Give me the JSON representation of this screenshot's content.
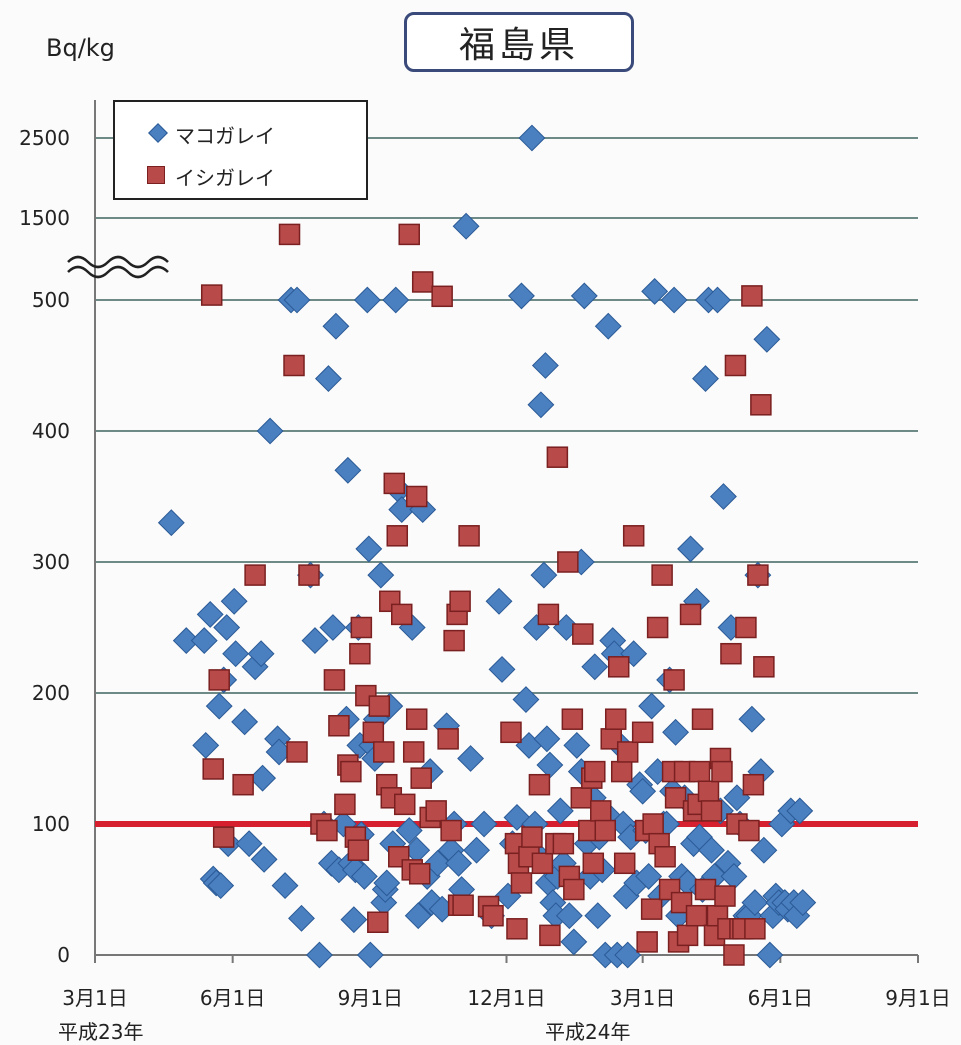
{
  "title": "福島県",
  "unit": "Bq/kg",
  "legend": {
    "series1": "マコガレイ",
    "series2": "イシガレイ"
  },
  "yticks": [
    "2500",
    "1500",
    "500",
    "400",
    "300",
    "200",
    "100",
    "0"
  ],
  "xticks": [
    "3月1日",
    "6月1日",
    "9月1日",
    "12月1日",
    "3月1日",
    "6月1日",
    "9月1日"
  ],
  "eras": [
    "平成23年",
    "平成24年"
  ],
  "chart_data": {
    "type": "scatter",
    "title": "福島県",
    "ylabel": "Bq/kg",
    "y_axis_break": "between 500 and 1500",
    "reference_line": 100,
    "x_unit": "days from 3月1日 平成23年",
    "xticks_days": [
      0,
      92,
      184,
      275,
      366,
      458,
      550
    ],
    "colors": {
      "マコガレイ": "#4a7fc0",
      "イシガレイ": "#b84a4a",
      "reference": "#d62030"
    },
    "series": [
      {
        "name": "マコガレイ",
        "points": [
          [
            51,
            330
          ],
          [
            61,
            240
          ],
          [
            73,
            240
          ],
          [
            74,
            160
          ],
          [
            77,
            260
          ],
          [
            79,
            58
          ],
          [
            81,
            55
          ],
          [
            83,
            190
          ],
          [
            84,
            53
          ],
          [
            86,
            210
          ],
          [
            88,
            250
          ],
          [
            89,
            85
          ],
          [
            93,
            270
          ],
          [
            94,
            230
          ],
          [
            100,
            178
          ],
          [
            103,
            85
          ],
          [
            107,
            220
          ],
          [
            111,
            230
          ],
          [
            112,
            135
          ],
          [
            113,
            73
          ],
          [
            117,
            400
          ],
          [
            122,
            165
          ],
          [
            123,
            155
          ],
          [
            127,
            53
          ],
          [
            131,
            500
          ],
          [
            135,
            500
          ],
          [
            138,
            28
          ],
          [
            144,
            290
          ],
          [
            147,
            240
          ],
          [
            150,
            0
          ],
          [
            153,
            100
          ],
          [
            156,
            440
          ],
          [
            158,
            70
          ],
          [
            159,
            250
          ],
          [
            161,
            480
          ],
          [
            163,
            65
          ],
          [
            166,
            100
          ],
          [
            168,
            180
          ],
          [
            169,
            370
          ],
          [
            171,
            70
          ],
          [
            173,
            27
          ],
          [
            174,
            65
          ],
          [
            176,
            250
          ],
          [
            177,
            160
          ],
          [
            178,
            92
          ],
          [
            180,
            60
          ],
          [
            182,
            500
          ],
          [
            183,
            310
          ],
          [
            184,
            0
          ],
          [
            185,
            160
          ],
          [
            187,
            150
          ],
          [
            188,
            180
          ],
          [
            191,
            290
          ],
          [
            193,
            40
          ],
          [
            194,
            50
          ],
          [
            195,
            55
          ],
          [
            197,
            190
          ],
          [
            199,
            85
          ],
          [
            201,
            500
          ],
          [
            203,
            355
          ],
          [
            205,
            340
          ],
          [
            210,
            95
          ],
          [
            212,
            250
          ],
          [
            215,
            80
          ],
          [
            216,
            30
          ],
          [
            219,
            340
          ],
          [
            222,
            60
          ],
          [
            224,
            140
          ],
          [
            225,
            40
          ],
          [
            229,
            70
          ],
          [
            232,
            35
          ],
          [
            235,
            175
          ],
          [
            238,
            80
          ],
          [
            240,
            100
          ],
          [
            243,
            70
          ],
          [
            245,
            50
          ],
          [
            248,
            1400
          ],
          [
            251,
            150
          ],
          [
            255,
            80
          ],
          [
            260,
            100
          ],
          [
            265,
            30
          ],
          [
            270,
            270
          ],
          [
            272,
            218
          ],
          [
            276,
            45
          ],
          [
            279,
            85
          ],
          [
            282,
            105
          ],
          [
            285,
            550
          ],
          [
            288,
            195
          ],
          [
            290,
            160
          ],
          [
            292,
            2500
          ],
          [
            294,
            100
          ],
          [
            295,
            250
          ],
          [
            297,
            75
          ],
          [
            298,
            420
          ],
          [
            300,
            290
          ],
          [
            301,
            450
          ],
          [
            302,
            165
          ],
          [
            303,
            55
          ],
          [
            304,
            145
          ],
          [
            306,
            40
          ],
          [
            308,
            30
          ],
          [
            309,
            60
          ],
          [
            311,
            110
          ],
          [
            313,
            70
          ],
          [
            315,
            250
          ],
          [
            317,
            30
          ],
          [
            320,
            10
          ],
          [
            322,
            160
          ],
          [
            325,
            300
          ],
          [
            325,
            140
          ],
          [
            327,
            550
          ],
          [
            329,
            85
          ],
          [
            331,
            60
          ],
          [
            333,
            120
          ],
          [
            334,
            220
          ],
          [
            336,
            30
          ],
          [
            337,
            90
          ],
          [
            339,
            65
          ],
          [
            341,
            0
          ],
          [
            343,
            480
          ],
          [
            344,
            105
          ],
          [
            346,
            240
          ],
          [
            347,
            230
          ],
          [
            349,
            0
          ],
          [
            351,
            160
          ],
          [
            353,
            100
          ],
          [
            355,
            45
          ],
          [
            356,
            0
          ],
          [
            358,
            90
          ],
          [
            360,
            230
          ],
          [
            362,
            55
          ],
          [
            364,
            130
          ],
          [
            366,
            125
          ],
          [
            368,
            95
          ],
          [
            370,
            60
          ],
          [
            372,
            190
          ],
          [
            374,
            605
          ],
          [
            376,
            140
          ],
          [
            378,
            45
          ],
          [
            380,
            100
          ],
          [
            382,
            100
          ],
          [
            384,
            210
          ],
          [
            386,
            125
          ],
          [
            387,
            500
          ],
          [
            388,
            170
          ],
          [
            390,
            30
          ],
          [
            392,
            60
          ],
          [
            394,
            120
          ],
          [
            396,
            55
          ],
          [
            398,
            310
          ],
          [
            400,
            85
          ],
          [
            402,
            270
          ],
          [
            404,
            90
          ],
          [
            406,
            50
          ],
          [
            408,
            440
          ],
          [
            410,
            500
          ],
          [
            412,
            80
          ],
          [
            414,
            60
          ],
          [
            416,
            500
          ],
          [
            418,
            110
          ],
          [
            420,
            350
          ],
          [
            423,
            70
          ],
          [
            425,
            250
          ],
          [
            427,
            60
          ],
          [
            429,
            120
          ],
          [
            431,
            100
          ],
          [
            433,
            25
          ],
          [
            435,
            30
          ],
          [
            437,
            30
          ],
          [
            439,
            180
          ],
          [
            441,
            40
          ],
          [
            443,
            290
          ],
          [
            445,
            140
          ],
          [
            447,
            80
          ],
          [
            449,
            470
          ],
          [
            451,
            0
          ],
          [
            453,
            30
          ],
          [
            455,
            45
          ],
          [
            457,
            40
          ],
          [
            459,
            100
          ],
          [
            461,
            40
          ],
          [
            463,
            35
          ],
          [
            465,
            110
          ],
          [
            467,
            40
          ],
          [
            469,
            30
          ],
          [
            471,
            110
          ],
          [
            473,
            40
          ]
        ]
      },
      {
        "name": "イシガレイ",
        "points": [
          [
            78,
            560
          ],
          [
            79,
            142
          ],
          [
            83,
            210
          ],
          [
            86,
            90
          ],
          [
            99,
            130
          ],
          [
            107,
            290
          ],
          [
            130,
            1300
          ],
          [
            133,
            450
          ],
          [
            135,
            155
          ],
          [
            143,
            290
          ],
          [
            151,
            100
          ],
          [
            155,
            95
          ],
          [
            160,
            210
          ],
          [
            163,
            175
          ],
          [
            167,
            115
          ],
          [
            169,
            145
          ],
          [
            171,
            140
          ],
          [
            174,
            90
          ],
          [
            176,
            80
          ],
          [
            177,
            230
          ],
          [
            178,
            250
          ],
          [
            181,
            198
          ],
          [
            186,
            170
          ],
          [
            189,
            25
          ],
          [
            190,
            190
          ],
          [
            193,
            155
          ],
          [
            195,
            130
          ],
          [
            197,
            270
          ],
          [
            198,
            120
          ],
          [
            200,
            360
          ],
          [
            202,
            320
          ],
          [
            203,
            75
          ],
          [
            205,
            260
          ],
          [
            207,
            115
          ],
          [
            210,
            1300
          ],
          [
            212,
            65
          ],
          [
            213,
            155
          ],
          [
            215,
            350
          ],
          [
            215,
            180
          ],
          [
            217,
            62
          ],
          [
            218,
            135
          ],
          [
            219,
            720
          ],
          [
            224,
            105
          ],
          [
            228,
            110
          ],
          [
            232,
            545
          ],
          [
            236,
            165
          ],
          [
            238,
            95
          ],
          [
            240,
            240
          ],
          [
            242,
            260
          ],
          [
            243,
            38
          ],
          [
            244,
            270
          ],
          [
            246,
            38
          ],
          [
            250,
            320
          ],
          [
            263,
            37
          ],
          [
            266,
            30
          ],
          [
            278,
            170
          ],
          [
            281,
            85
          ],
          [
            282,
            20
          ],
          [
            283,
            70
          ],
          [
            285,
            55
          ],
          [
            290,
            75
          ],
          [
            292,
            90
          ],
          [
            297,
            130
          ],
          [
            299,
            70
          ],
          [
            303,
            260
          ],
          [
            304,
            15
          ],
          [
            308,
            85
          ],
          [
            309,
            380
          ],
          [
            313,
            85
          ],
          [
            316,
            300
          ],
          [
            317,
            60
          ],
          [
            319,
            180
          ],
          [
            320,
            50
          ],
          [
            325,
            120
          ],
          [
            326,
            245
          ],
          [
            330,
            95
          ],
          [
            332,
            135
          ],
          [
            333,
            70
          ],
          [
            334,
            140
          ],
          [
            338,
            110
          ],
          [
            341,
            95
          ],
          [
            345,
            165
          ],
          [
            348,
            180
          ],
          [
            350,
            220
          ],
          [
            352,
            140
          ],
          [
            354,
            70
          ],
          [
            356,
            155
          ],
          [
            360,
            320
          ],
          [
            366,
            170
          ],
          [
            368,
            95
          ],
          [
            369,
            10
          ],
          [
            372,
            35
          ],
          [
            373,
            100
          ],
          [
            376,
            250
          ],
          [
            377,
            85
          ],
          [
            379,
            290
          ],
          [
            381,
            75
          ],
          [
            384,
            50
          ],
          [
            386,
            140
          ],
          [
            387,
            210
          ],
          [
            388,
            120
          ],
          [
            390,
            10
          ],
          [
            392,
            40
          ],
          [
            394,
            140
          ],
          [
            396,
            15
          ],
          [
            398,
            260
          ],
          [
            400,
            110
          ],
          [
            402,
            30
          ],
          [
            403,
            115
          ],
          [
            404,
            140
          ],
          [
            406,
            180
          ],
          [
            408,
            50
          ],
          [
            410,
            125
          ],
          [
            412,
            110
          ],
          [
            414,
            15
          ],
          [
            416,
            30
          ],
          [
            418,
            150
          ],
          [
            419,
            140
          ],
          [
            421,
            45
          ],
          [
            423,
            20
          ],
          [
            425,
            230
          ],
          [
            427,
            0
          ],
          [
            428,
            450
          ],
          [
            429,
            100
          ],
          [
            431,
            20
          ],
          [
            433,
            20
          ],
          [
            435,
            250
          ],
          [
            437,
            95
          ],
          [
            439,
            550
          ],
          [
            440,
            130
          ],
          [
            441,
            20
          ],
          [
            443,
            290
          ],
          [
            445,
            420
          ],
          [
            447,
            220
          ]
        ]
      }
    ]
  }
}
